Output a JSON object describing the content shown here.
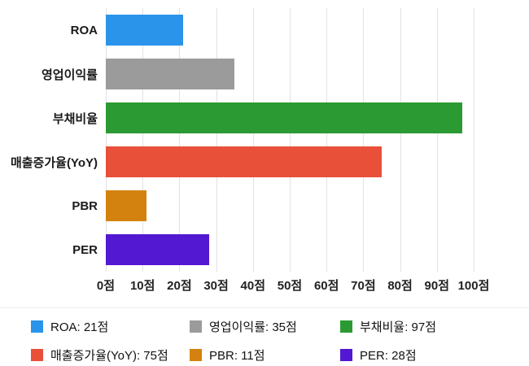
{
  "chart_data": {
    "type": "bar",
    "orientation": "horizontal",
    "categories": [
      "ROA",
      "영업이익률",
      "부채비율",
      "매출증가율(YoY)",
      "PBR",
      "PER"
    ],
    "values": [
      21,
      35,
      97,
      75,
      11,
      28
    ],
    "colors": [
      "#2994EA",
      "#9B9B9B",
      "#2B9A32",
      "#E8503A",
      "#D4820F",
      "#5318D2"
    ],
    "unit": "점",
    "xlim": [
      0,
      100
    ],
    "x_tick_step": 10,
    "x_tick_labels": [
      "0점",
      "10점",
      "20점",
      "30점",
      "40점",
      "50점",
      "60점",
      "70점",
      "80점",
      "90점",
      "100점"
    ],
    "grid": true,
    "legend_position": "bottom",
    "legend": [
      {
        "label": "ROA: 21점",
        "color": "#2994EA"
      },
      {
        "label": "영업이익률: 35점",
        "color": "#9B9B9B"
      },
      {
        "label": "부채비율: 97점",
        "color": "#2B9A32"
      },
      {
        "label": "매출증가율(YoY): 75점",
        "color": "#E8503A"
      },
      {
        "label": "PBR: 11점",
        "color": "#D4820F"
      },
      {
        "label": "PER: 28점",
        "color": "#5318D2"
      }
    ]
  }
}
